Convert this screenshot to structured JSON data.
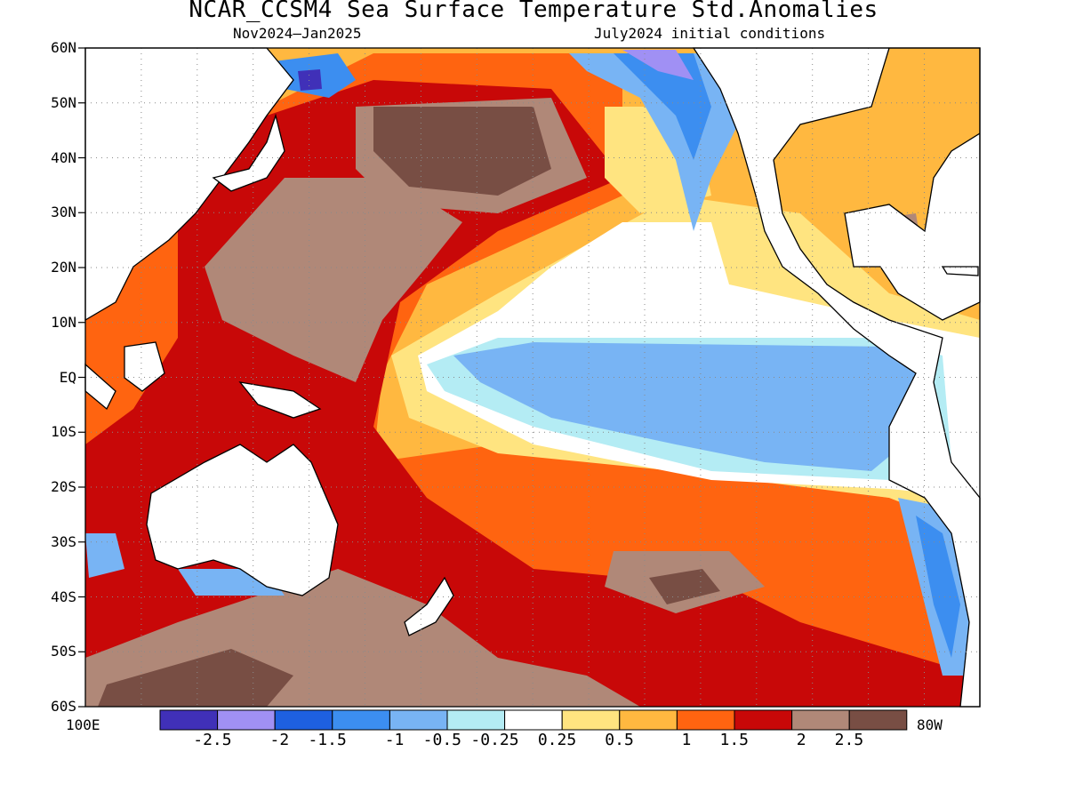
{
  "title": "NCAR_CCSM4 Sea Surface Temperature Std.Anomalies",
  "subtitle_left": "Nov2024–Jan2025",
  "subtitle_right": "July2024 initial conditions",
  "lat_labels": [
    "60N",
    "50N",
    "40N",
    "30N",
    "20N",
    "10N",
    "EQ",
    "10S",
    "20S",
    "30S",
    "40S",
    "50S",
    "60S"
  ],
  "lon_labels": {
    "left": "100E",
    "right": "80W"
  },
  "colorbar": {
    "colors": [
      "#4030b8",
      "#a090f4",
      "#1e60e0",
      "#3c8ef0",
      "#78b4f4",
      "#b4ecf4",
      "#ffffff",
      "#ffe480",
      "#ffb840",
      "#ff6410",
      "#c80808",
      "#b08878",
      "#784e44"
    ],
    "labels": [
      "-2.5",
      "-2",
      "-1.5",
      "-1",
      "-0.5",
      "-0.25",
      "0.25",
      "0.5",
      "1",
      "1.5",
      "2",
      "2.5"
    ]
  },
  "legend_colors": {
    "ocean_base": "#ffb840",
    "warm_strong": "#c80808",
    "warm_extreme": "#b08878",
    "cold_core": "#78b4f4",
    "land": "#ffffff"
  }
}
